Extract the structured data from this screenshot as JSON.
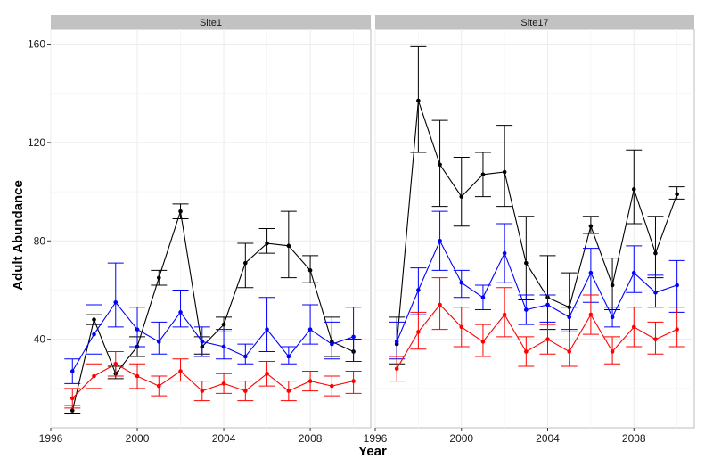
{
  "chart_data": {
    "type": "line",
    "xlabel": "Year",
    "ylabel": "Adult Abundance",
    "xlim": [
      1996,
      2010.8
    ],
    "ylim": [
      4,
      166
    ],
    "x_ticks": [
      1996,
      2000,
      2004,
      2008
    ],
    "y_ticks": [
      40,
      80,
      120,
      160
    ],
    "grid": true,
    "legend": "none",
    "colors": {
      "black_series": "#000000",
      "blue_series": "#0000ff",
      "red_series": "#ff0000",
      "strip_fill": "#c2c2c2",
      "panel_background": "#ffffff",
      "grid": "#ececec"
    },
    "panels": [
      {
        "title": "Site1",
        "series": [
          {
            "color": "#000000",
            "x": [
              1997,
              1998,
              1999,
              2000,
              2001,
              2002,
              2003,
              2004,
              2005,
              2006,
              2007,
              2008,
              2009,
              2010
            ],
            "y": [
              11,
              48,
              26,
              37,
              65,
              92,
              37,
              46,
              71,
              79,
              78,
              68,
              39,
              35
            ],
            "lower": [
              10,
              46,
              24,
              33,
              62,
              89,
              34,
              43,
              61,
              75,
              65,
              63,
              33,
              31
            ],
            "upper": [
              13,
              50,
              29,
              41,
              68,
              95,
              41,
              49,
              79,
              85,
              92,
              74,
              49,
              40
            ]
          },
          {
            "color": "#0000ff",
            "x": [
              1997,
              1998,
              1999,
              2000,
              2001,
              2002,
              2003,
              2004,
              2005,
              2006,
              2007,
              2008,
              2009,
              2010
            ],
            "y": [
              27,
              42,
              55,
              44,
              39,
              51,
              39,
              37,
              33,
              44,
              33,
              44,
              38,
              41
            ],
            "lower": [
              22,
              34,
              45,
              37,
              34,
              45,
              33,
              32,
              30,
              35,
              30,
              38,
              32,
              31
            ],
            "upper": [
              32,
              54,
              71,
              53,
              47,
              60,
              45,
              44,
              38,
              57,
              37,
              54,
              47,
              53
            ]
          },
          {
            "color": "#ff0000",
            "x": [
              1997,
              1998,
              1999,
              2000,
              2001,
              2002,
              2003,
              2004,
              2005,
              2006,
              2007,
              2008,
              2009,
              2010
            ],
            "y": [
              16,
              25,
              30,
              25,
              21,
              27,
              19,
              22,
              19,
              26,
              19,
              23,
              21,
              23
            ],
            "lower": [
              12,
              20,
              25,
              20,
              17,
              23,
              15,
              18,
              15,
              21,
              15,
              19,
              17,
              18
            ],
            "upper": [
              20,
              30,
              35,
              30,
              25,
              32,
              23,
              26,
              23,
              31,
              23,
              27,
              25,
              27
            ]
          }
        ]
      },
      {
        "title": "Site17",
        "series": [
          {
            "color": "#000000",
            "x": [
              1997,
              1998,
              1999,
              2000,
              2001,
              2002,
              2003,
              2004,
              2005,
              2006,
              2007,
              2008,
              2009,
              2010
            ],
            "y": [
              38,
              137,
              111,
              98,
              107,
              108,
              71,
              57,
              53,
              86,
              62,
              101,
              75,
              99
            ],
            "lower": [
              30,
              116,
              94,
              86,
              98,
              94,
              56,
              44,
              43,
              83,
              52,
              87,
              65,
              97
            ],
            "upper": [
              49,
              159,
              129,
              114,
              116,
              127,
              90,
              74,
              67,
              90,
              73,
              117,
              90,
              102
            ]
          },
          {
            "color": "#0000ff",
            "x": [
              1997,
              1998,
              1999,
              2000,
              2001,
              2002,
              2003,
              2004,
              2005,
              2006,
              2007,
              2008,
              2009,
              2010
            ],
            "y": [
              39,
              60,
              80,
              63,
              57,
              75,
              52,
              54,
              49,
              67,
              49,
              67,
              59,
              62
            ],
            "lower": [
              32,
              50,
              68,
              57,
              52,
              63,
              46,
              47,
              44,
              55,
              45,
              59,
              53,
              51
            ],
            "upper": [
              47,
              69,
              92,
              68,
              62,
              87,
              58,
              58,
              53,
              77,
              53,
              78,
              66,
              72
            ]
          },
          {
            "color": "#ff0000",
            "x": [
              1997,
              1998,
              1999,
              2000,
              2001,
              2002,
              2003,
              2004,
              2005,
              2006,
              2007,
              2008,
              2009,
              2010
            ],
            "y": [
              28,
              43,
              54,
              45,
              39,
              50,
              35,
              40,
              35,
              50,
              35,
              45,
              40,
              44
            ],
            "lower": [
              23,
              36,
              44,
              37,
              33,
              41,
              29,
              34,
              29,
              42,
              30,
              37,
              34,
              37
            ],
            "upper": [
              33,
              51,
              65,
              53,
              46,
              61,
              41,
              46,
              43,
              58,
              41,
              53,
              47,
              53
            ]
          }
        ]
      }
    ]
  }
}
